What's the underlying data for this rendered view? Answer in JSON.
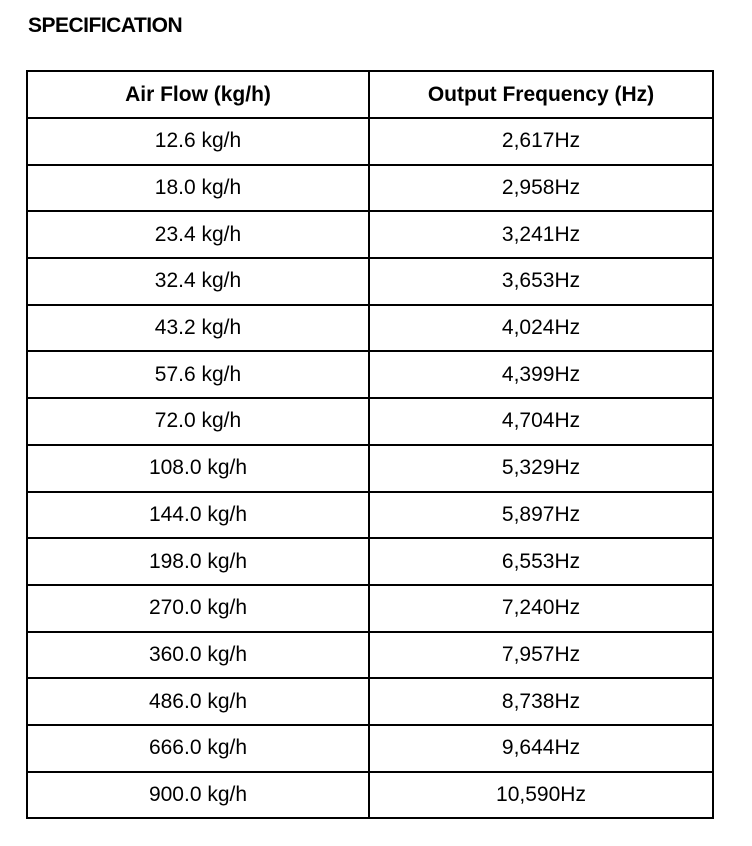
{
  "title": "SPECIFICATION",
  "table": {
    "headers": [
      "Air Flow (kg/h)",
      "Output Frequency (Hz)"
    ],
    "rows": [
      [
        "12.6 kg/h",
        "2,617Hz"
      ],
      [
        "18.0 kg/h",
        "2,958Hz"
      ],
      [
        "23.4 kg/h",
        "3,241Hz"
      ],
      [
        "32.4 kg/h",
        "3,653Hz"
      ],
      [
        "43.2 kg/h",
        "4,024Hz"
      ],
      [
        "57.6 kg/h",
        "4,399Hz"
      ],
      [
        "72.0 kg/h",
        "4,704Hz"
      ],
      [
        "108.0 kg/h",
        "5,329Hz"
      ],
      [
        "144.0 kg/h",
        "5,897Hz"
      ],
      [
        "198.0 kg/h",
        "6,553Hz"
      ],
      [
        "270.0 kg/h",
        "7,240Hz"
      ],
      [
        "360.0 kg/h",
        "7,957Hz"
      ],
      [
        "486.0 kg/h",
        "8,738Hz"
      ],
      [
        "666.0 kg/h",
        "9,644Hz"
      ],
      [
        "900.0 kg/h",
        "10,590Hz"
      ]
    ]
  }
}
